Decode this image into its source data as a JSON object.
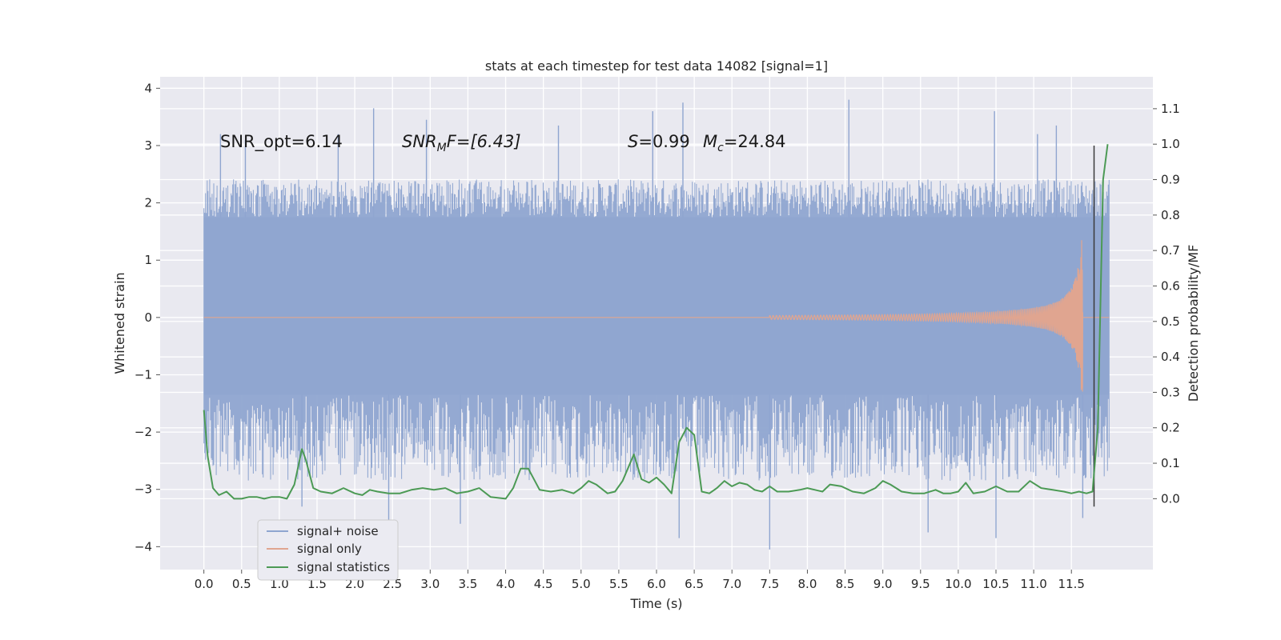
{
  "chart_data": {
    "type": "line",
    "title": "stats at each timestep for test data 14082 [signal=1]",
    "xlabel": "Time (s)",
    "ylabel": "Whitened strain",
    "y2label": "Detection probability/MF",
    "xlim": [
      -0.58,
      12.58
    ],
    "ylim": [
      -4.4,
      4.2
    ],
    "y2lim": [
      -0.2,
      1.19
    ],
    "x_ticks": [
      0.0,
      0.5,
      1.0,
      1.5,
      2.0,
      2.5,
      3.0,
      3.5,
      4.0,
      4.5,
      5.0,
      5.5,
      6.0,
      6.5,
      7.0,
      7.5,
      8.0,
      8.5,
      9.0,
      9.5,
      10.0,
      10.5,
      11.0,
      11.5
    ],
    "x_tick_labels": [
      "0.0",
      "0.5",
      "1.0",
      "1.5",
      "2.0",
      "2.5",
      "3.0",
      "3.5",
      "4.0",
      "4.5",
      "5.0",
      "5.5",
      "6.0",
      "6.5",
      "7.0",
      "7.5",
      "8.0",
      "8.5",
      "9.0",
      "9.5",
      "10.0",
      "10.5",
      "11.0",
      "11.5"
    ],
    "y_ticks": [
      4,
      3,
      2,
      1,
      0,
      -1,
      -2,
      -3,
      -4
    ],
    "y_tick_labels": [
      "4",
      "3",
      "2",
      "1",
      "0",
      "−1",
      "−2",
      "−3",
      "−4"
    ],
    "y2_ticks": [
      1.1,
      1.0,
      0.9,
      0.8,
      0.7,
      0.6,
      0.5,
      0.4,
      0.3,
      0.2,
      0.1,
      0.0
    ],
    "y2_tick_labels": [
      "1.1",
      "1.0",
      "0.9",
      "0.8",
      "0.7",
      "0.6",
      "0.5",
      "0.4",
      "0.3",
      "0.2",
      "0.1",
      "0.0"
    ],
    "grid": true,
    "legend_position": "lower-left",
    "annotations": {
      "snr_opt": "SNR_opt=6.14",
      "snr_mf_main": "SNR",
      "snr_mf_sub": "M",
      "snr_mf_rest": "F=[6.43]",
      "s_label": "S",
      "s_value": "=0.99",
      "mc_main": "M",
      "mc_sub": "c",
      "mc_value": "=24.84"
    },
    "series": [
      {
        "name": "signal+ noise",
        "color": "#8fa5d0",
        "description_type": "noise",
        "x_range": [
          0.0,
          12.0
        ],
        "band_y": [
          -1.35,
          1.75
        ],
        "envelope_top_typical": 2.3,
        "envelope_bottom_typical": -2.6,
        "spikes": [
          {
            "x": 0.22,
            "y": 3.2
          },
          {
            "x": 0.55,
            "y": 3.1
          },
          {
            "x": 1.78,
            "y": 3.2
          },
          {
            "x": 2.25,
            "y": 3.65
          },
          {
            "x": 2.95,
            "y": 3.45
          },
          {
            "x": 4.7,
            "y": 3.35
          },
          {
            "x": 5.95,
            "y": 3.6
          },
          {
            "x": 6.35,
            "y": 3.75
          },
          {
            "x": 8.55,
            "y": 3.8
          },
          {
            "x": 10.48,
            "y": 3.6
          },
          {
            "x": 11.05,
            "y": 3.2
          },
          {
            "x": 11.3,
            "y": 3.35
          },
          {
            "x": 3.4,
            "y": -3.6
          },
          {
            "x": 2.45,
            "y": -3.9
          },
          {
            "x": 6.3,
            "y": -3.85
          },
          {
            "x": 7.5,
            "y": -4.05
          },
          {
            "x": 10.5,
            "y": -3.85
          },
          {
            "x": 9.6,
            "y": -3.75
          },
          {
            "x": 11.65,
            "y": -3.5
          },
          {
            "x": 1.3,
            "y": -3.3
          }
        ]
      },
      {
        "name": "signal only",
        "color": "#e0a590",
        "description_type": "chirp",
        "flat_until": 7.5,
        "merger_x": 11.65,
        "peak_amplitude": 1.35
      },
      {
        "name": "signal statistics",
        "color": "#4c9a55",
        "axis": "right",
        "x": [
          0.0,
          0.05,
          0.12,
          0.2,
          0.3,
          0.4,
          0.5,
          0.6,
          0.7,
          0.8,
          0.9,
          1.0,
          1.1,
          1.2,
          1.3,
          1.35,
          1.45,
          1.55,
          1.7,
          1.85,
          2.0,
          2.1,
          2.2,
          2.3,
          2.45,
          2.6,
          2.75,
          2.9,
          3.05,
          3.2,
          3.35,
          3.5,
          3.65,
          3.8,
          4.0,
          4.1,
          4.2,
          4.3,
          4.45,
          4.6,
          4.75,
          4.9,
          5.0,
          5.1,
          5.2,
          5.35,
          5.45,
          5.55,
          5.7,
          5.8,
          5.9,
          6.0,
          6.1,
          6.2,
          6.3,
          6.4,
          6.5,
          6.6,
          6.7,
          6.8,
          6.9,
          7.0,
          7.1,
          7.2,
          7.3,
          7.4,
          7.5,
          7.6,
          7.75,
          7.9,
          8.0,
          8.1,
          8.2,
          8.3,
          8.45,
          8.6,
          8.75,
          8.9,
          9.0,
          9.1,
          9.25,
          9.4,
          9.55,
          9.7,
          9.8,
          9.9,
          10.0,
          10.1,
          10.2,
          10.35,
          10.5,
          10.65,
          10.8,
          10.95,
          11.1,
          11.25,
          11.4,
          11.5,
          11.6,
          11.7,
          11.78,
          11.85,
          11.92,
          11.98
        ],
        "y": [
          0.25,
          0.12,
          0.03,
          0.01,
          0.02,
          0.0,
          0.0,
          0.005,
          0.005,
          0.0,
          0.005,
          0.005,
          0.0,
          0.04,
          0.14,
          0.11,
          0.03,
          0.02,
          0.015,
          0.03,
          0.015,
          0.01,
          0.025,
          0.02,
          0.015,
          0.015,
          0.025,
          0.03,
          0.025,
          0.03,
          0.015,
          0.02,
          0.03,
          0.005,
          0.0,
          0.03,
          0.085,
          0.085,
          0.025,
          0.02,
          0.025,
          0.015,
          0.03,
          0.05,
          0.04,
          0.015,
          0.02,
          0.05,
          0.125,
          0.055,
          0.045,
          0.06,
          0.04,
          0.015,
          0.16,
          0.2,
          0.18,
          0.02,
          0.015,
          0.03,
          0.05,
          0.035,
          0.045,
          0.04,
          0.025,
          0.02,
          0.035,
          0.02,
          0.02,
          0.025,
          0.03,
          0.025,
          0.02,
          0.04,
          0.035,
          0.02,
          0.015,
          0.03,
          0.05,
          0.04,
          0.02,
          0.015,
          0.015,
          0.025,
          0.015,
          0.015,
          0.02,
          0.045,
          0.015,
          0.02,
          0.035,
          0.02,
          0.02,
          0.05,
          0.03,
          0.025,
          0.02,
          0.015,
          0.02,
          0.015,
          0.02,
          0.2,
          0.9,
          1.0
        ]
      }
    ],
    "marker_line": {
      "x": 11.8,
      "y_range": [
        -3.3,
        3.0
      ],
      "color": "#3a3a3a"
    }
  }
}
